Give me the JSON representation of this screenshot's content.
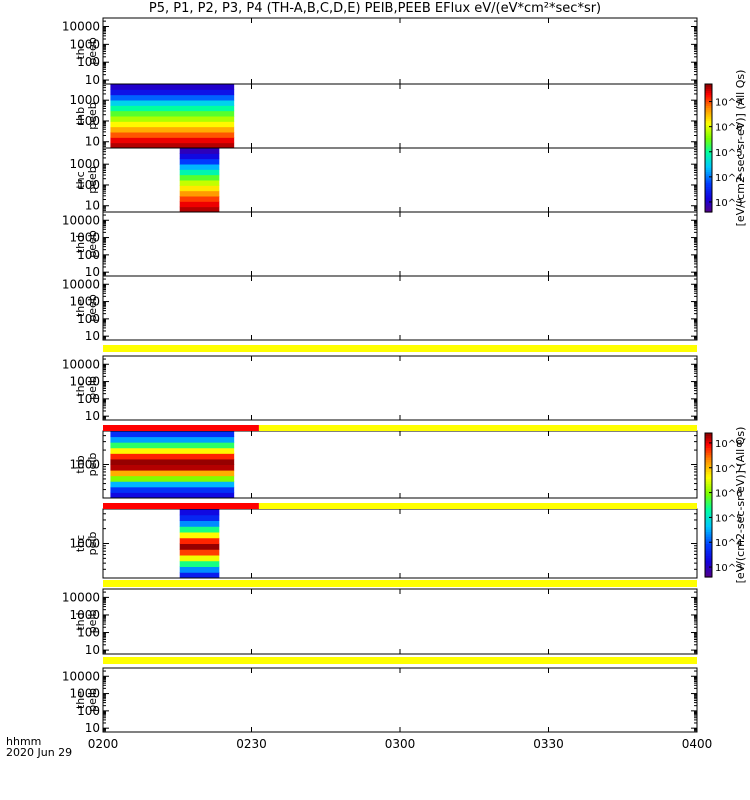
{
  "title": "P5, P1, P2, P3, P4 (TH-A,B,C,D,E) PEIB,PEEB EFlux eV/(eV*cm²*sec*sr)",
  "time_axis": {
    "label_left_1": "hhmm",
    "label_left_2": "2020 Jun 29",
    "ticks": [
      "0200",
      "0230",
      "0300",
      "0330",
      "0400"
    ],
    "tick_minutes": [
      0,
      30,
      60,
      90,
      120
    ]
  },
  "colors": {
    "flag_yellow": "#ffff00",
    "flag_red": "#ff0000"
  },
  "colorbars": [
    {
      "id": "electron",
      "title": "[eV/(cm2-sec-sr-eV)] (All Qs)",
      "tick_labels": [
        "10^3",
        "10^4",
        "10^5",
        "10^6",
        "10^7"
      ],
      "tick_exponents": [
        3,
        4,
        5,
        6,
        7
      ],
      "range_exponent": [
        2.6,
        7.7
      ]
    },
    {
      "id": "ion",
      "title": "[eV/(cm2-sec-sr-eV)] (All Qs)",
      "tick_labels": [
        "10^3",
        "10^4",
        "10^5",
        "10^6",
        "10^7",
        "10^8"
      ],
      "tick_exponents": [
        3,
        4,
        5,
        6,
        7,
        8
      ],
      "range_exponent": [
        2.6,
        8.4
      ]
    }
  ],
  "chart_data": {
    "type": "heatmap",
    "x_unit": "minutes after 02:00 UT",
    "xlim": [
      0,
      120
    ],
    "panels": [
      {
        "probe": "thc",
        "product": "peeb",
        "y_log": true,
        "ylim": [
          6,
          30000
        ],
        "y_ticks": [
          "10",
          "100",
          "1000",
          "10000"
        ],
        "y_tick_values": [
          10,
          100,
          1000,
          10000
        ],
        "data": []
      },
      {
        "probe": "thb",
        "product": "peeb",
        "y_log": true,
        "ylim": [
          5,
          6000
        ],
        "y_ticks": [
          "10",
          "100",
          "1000"
        ],
        "y_tick_values": [
          10,
          100,
          1000
        ],
        "data": [
          {
            "x_range": [
              1.5,
              26.5
            ],
            "levels": [
              7.6,
              7.4,
              7.0,
              6.6,
              6.2,
              5.8,
              5.4,
              5.0,
              4.5,
              3.9,
              3.3,
              3.0
            ]
          }
        ]
      },
      {
        "probe": "thc",
        "product": "peeb",
        "y_log": true,
        "ylim": [
          5,
          6000
        ],
        "y_ticks": [
          "10",
          "100",
          "1000"
        ],
        "y_tick_values": [
          10,
          100,
          1000
        ],
        "data": [
          {
            "x_range": [
              15.5,
              23.5
            ],
            "levels": [
              7.6,
              7.4,
              7.1,
              6.7,
              6.3,
              5.9,
              5.4,
              4.9,
              4.3,
              3.7,
              3.2,
              2.9
            ]
          }
        ]
      },
      {
        "probe": "thd",
        "product": "peeb",
        "y_log": true,
        "ylim": [
          6,
          30000
        ],
        "y_ticks": [
          "10",
          "100",
          "1000",
          "10000"
        ],
        "y_tick_values": [
          10,
          100,
          1000,
          10000
        ],
        "data": []
      },
      {
        "probe": "the",
        "product": "peeb",
        "y_log": true,
        "ylim": [
          6,
          30000
        ],
        "y_ticks": [
          "10",
          "100",
          "1000",
          "10000"
        ],
        "y_tick_values": [
          10,
          100,
          1000,
          10000
        ],
        "data": []
      },
      {
        "probe": "thc",
        "product": "peib",
        "y_log": true,
        "ylim": [
          6,
          30000
        ],
        "y_ticks": [
          "10",
          "100",
          "1000",
          "10000"
        ],
        "y_tick_values": [
          10,
          100,
          1000,
          10000
        ],
        "data": []
      },
      {
        "probe": "thb",
        "product": "peib",
        "y_log": true,
        "ylim": [
          200,
          5000
        ],
        "y_ticks": [
          "1000"
        ],
        "y_tick_values": [
          1000
        ],
        "data": [
          {
            "x_range": [
              1.5,
              26.5
            ],
            "levels": [
              3.2,
              3.6,
              4.3,
              5.6,
              6.6,
              7.6,
              7.8,
              7.2,
              6.2,
              5.2,
              4.2,
              3.6
            ]
          }
        ]
      },
      {
        "probe": "thc",
        "product": "peib",
        "y_log": true,
        "ylim": [
          200,
          5000
        ],
        "y_ticks": [
          "1000"
        ],
        "y_tick_values": [
          1000
        ],
        "data": [
          {
            "x_range": [
              15.5,
              23.5
            ],
            "levels": [
              3.4,
              4.1,
              5.1,
              6.1,
              7.1,
              7.9,
              7.2,
              6.2,
              5.1,
              4.1,
              3.5,
              3.2
            ]
          }
        ]
      },
      {
        "probe": "thd",
        "product": "peib",
        "y_log": true,
        "ylim": [
          6,
          30000
        ],
        "y_ticks": [
          "10",
          "100",
          "1000",
          "10000"
        ],
        "y_tick_values": [
          10,
          100,
          1000,
          10000
        ],
        "data": []
      },
      {
        "probe": "the",
        "product": "peib",
        "y_log": true,
        "ylim": [
          6,
          30000
        ],
        "y_ticks": [
          "10",
          "100",
          "1000",
          "10000"
        ],
        "y_tick_values": [
          10,
          100,
          1000,
          10000
        ],
        "data": []
      }
    ],
    "flag_bars": [
      {
        "after_panel": 4,
        "segments": [
          {
            "x_range": [
              0,
              120
            ],
            "color": "yellow"
          }
        ]
      },
      {
        "after_panel": 5,
        "segments": [
          {
            "x_range": [
              0,
              31.5
            ],
            "color": "red"
          },
          {
            "x_range": [
              31.5,
              120
            ],
            "color": "yellow"
          }
        ]
      },
      {
        "after_panel": 6,
        "segments": [
          {
            "x_range": [
              0,
              31.5
            ],
            "color": "red"
          },
          {
            "x_range": [
              31.5,
              120
            ],
            "color": "yellow"
          }
        ]
      },
      {
        "after_panel": 7,
        "segments": [
          {
            "x_range": [
              0,
              120
            ],
            "color": "yellow"
          }
        ]
      },
      {
        "after_panel": 8,
        "segments": [
          {
            "x_range": [
              0,
              120
            ],
            "color": "yellow"
          }
        ]
      }
    ]
  }
}
